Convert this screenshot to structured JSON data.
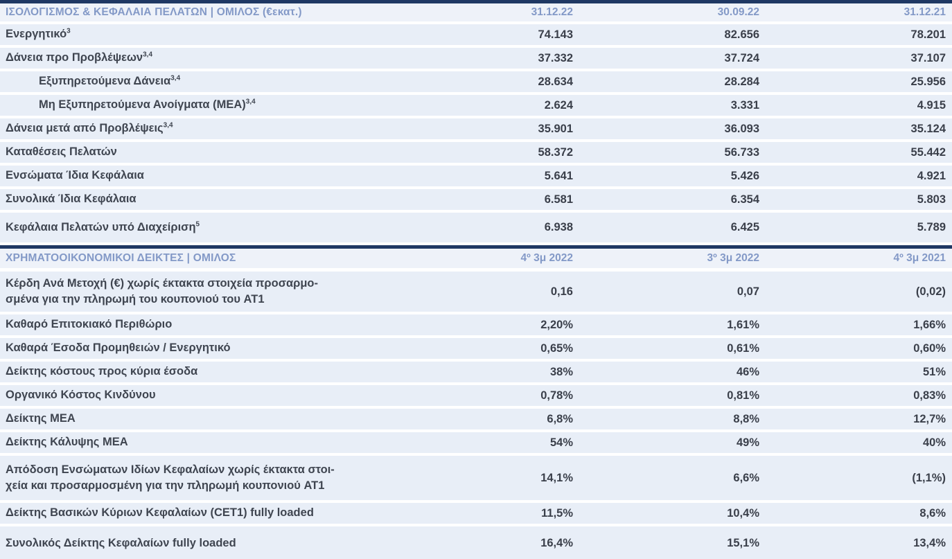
{
  "colors": {
    "navy_bar": "#1f3864",
    "header_text": "#8399c7",
    "header_bg": "#eef2f9",
    "row_bg": "#e8eef7",
    "label_text": "#3f4550",
    "value_text": "#3a3f4a"
  },
  "sections": [
    {
      "title": "ΙΣΟΛΟΓΙΣΜΟΣ & ΚΕΦΑΛΑΙΑ ΠΕΛΑΤΩΝ | ΟΜΙΛΟΣ (€εκατ.)",
      "columns": [
        "31.12.22",
        "30.09.22",
        "31.12.21"
      ],
      "rows": [
        {
          "label": "Ενεργητικό",
          "sup": "3",
          "values": [
            "74.143",
            "82.656",
            "78.201"
          ]
        },
        {
          "label": "Δάνεια προ Προβλέψεων",
          "sup": "3,4",
          "values": [
            "37.332",
            "37.724",
            "37.107"
          ]
        },
        {
          "label": "Εξυπηρετούμενα Δάνεια",
          "sup": "3,4",
          "values": [
            "28.634",
            "28.284",
            "25.956"
          ]
        },
        {
          "label": "Μη Εξυπηρετούμενα Ανοίγματα (ΜΕΑ)",
          "sup": "3,4",
          "values": [
            "2.624",
            "3.331",
            "4.915"
          ]
        },
        {
          "label": "Δάνεια μετά από Προβλέψεις",
          "sup": "3,4",
          "values": [
            "35.901",
            "36.093",
            "35.124"
          ]
        },
        {
          "label": "Καταθέσεις Πελατών",
          "values": [
            "58.372",
            "56.733",
            "55.442"
          ]
        },
        {
          "label": "Ενσώματα Ίδια Κεφάλαια",
          "values": [
            "5.641",
            "5.426",
            "4.921"
          ]
        },
        {
          "label": "Συνολικά Ίδια Κεφάλαια",
          "values": [
            "6.581",
            "6.354",
            "5.803"
          ]
        },
        {
          "label": "Κεφάλαια Πελατών υπό Διαχείριση",
          "sup": "5",
          "values": [
            "6.938",
            "6.425",
            "5.789"
          ]
        }
      ]
    },
    {
      "title": "ΧΡΗΜΑΤΟΟΙΚΟΝΟΜΙΚΟΙ ΔΕΙΚΤΕΣ | ΟΜΙΛΟΣ",
      "columns": [
        "4º 3μ 2022",
        "3º 3μ 2022",
        "4º 3μ 2021"
      ],
      "rows": [
        {
          "label": "Κέρδη Ανά Μετοχή (€) χωρίς έκτακτα στοιχεία προσαρμο-\nσμένα για την πληρωμή του κουπονιού του AT1",
          "values": [
            "0,16",
            "0,07",
            "(0,02)"
          ]
        },
        {
          "label": "Καθαρό Επιτοκιακό Περιθώριο",
          "values": [
            "2,20%",
            "1,61%",
            "1,66%"
          ]
        },
        {
          "label": "Καθαρά Έσοδα Προμηθειών / Ενεργητικό",
          "values": [
            "0,65%",
            "0,61%",
            "0,60%"
          ]
        },
        {
          "label": "Δείκτης κόστους προς κύρια έσοδα",
          "values": [
            "38%",
            "46%",
            "51%"
          ]
        },
        {
          "label": "Οργανικό Κόστος Κινδύνου",
          "values": [
            "0,78%",
            "0,81%",
            "0,83%"
          ]
        },
        {
          "label": "Δείκτης ΜΕΑ",
          "values": [
            "6,8%",
            "8,8%",
            "12,7%"
          ]
        },
        {
          "label": "Δείκτης Κάλυψης ΜΕΑ",
          "values": [
            "54%",
            "49%",
            "40%"
          ]
        },
        {
          "label": "Απόδοση Ενσώματων Ιδίων Κεφαλαίων χωρίς έκτακτα στοι-\nχεία και προσαρμοσμένη για την πληρωμή κουπονιού AT1",
          "values": [
            "14,1%",
            "6,6%",
            "(1,1%)"
          ]
        },
        {
          "label": "Δείκτης Βασικών Κύριων Κεφαλαίων (CET1) fully loaded",
          "values": [
            "11,5%",
            "10,4%",
            "8,6%"
          ]
        },
        {
          "label": "Συνολικός Δείκτης Κεφαλαίων fully loaded",
          "values": [
            "16,4%",
            "15,1%",
            "13,4%"
          ]
        }
      ]
    }
  ]
}
